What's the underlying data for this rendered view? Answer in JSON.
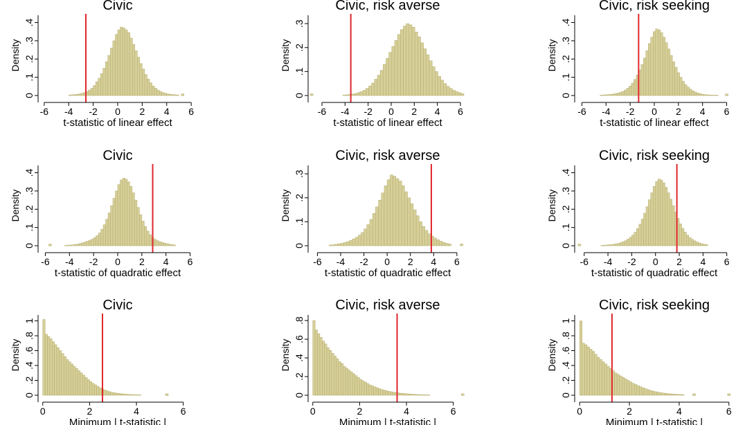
{
  "chart_data": [
    {
      "type": "bar",
      "title": "Civic",
      "xlabel": "t-statistic of linear effect",
      "ylabel": "Density",
      "xticks": [
        -6,
        -4,
        -2,
        0,
        2,
        4,
        6
      ],
      "yticks": [
        {
          "v": 0,
          "l": "0"
        },
        {
          "v": 0.1,
          "l": ".1"
        },
        {
          "v": 0.2,
          "l": ".2"
        },
        {
          "v": 0.3,
          "l": ".3"
        },
        {
          "v": 0.4,
          "l": ".4"
        }
      ],
      "xlim": [
        -6.5,
        6.5
      ],
      "ylim": [
        0,
        0.44
      ],
      "vline": -2.6,
      "bin_start": -4.0,
      "bin_width": 0.2,
      "values": [
        0.003,
        0.004,
        0.005,
        0.007,
        0.009,
        0.012,
        0.016,
        0.022,
        0.03,
        0.04,
        0.055,
        0.075,
        0.095,
        0.12,
        0.15,
        0.185,
        0.22,
        0.26,
        0.3,
        0.335,
        0.36,
        0.375,
        0.37,
        0.36,
        0.345,
        0.315,
        0.28,
        0.245,
        0.21,
        0.175,
        0.145,
        0.115,
        0.09,
        0.07,
        0.052,
        0.04,
        0.03,
        0.022,
        0.016,
        0.012,
        0.009,
        0.007,
        0.005,
        0.004,
        0.003
      ],
      "outliers": [
        {
          "x": 5.3,
          "v": 0.003
        }
      ]
    },
    {
      "type": "bar",
      "title": "Civic, risk averse",
      "xlabel": "t-statistic of linear effect",
      "ylabel": "Density",
      "xticks": [
        -6,
        -4,
        -2,
        0,
        2,
        4,
        6
      ],
      "yticks": [
        {
          "v": 0,
          "l": "0"
        },
        {
          "v": 0.1,
          "l": ".1"
        },
        {
          "v": 0.2,
          "l": ".2"
        },
        {
          "v": 0.3,
          "l": ".3"
        }
      ],
      "xlim": [
        -7.2,
        6.6
      ],
      "ylim": [
        0,
        0.335
      ],
      "vline": -3.5,
      "bin_start": -4.2,
      "bin_width": 0.25,
      "values": [
        0.002,
        0.003,
        0.004,
        0.006,
        0.008,
        0.012,
        0.016,
        0.022,
        0.03,
        0.04,
        0.052,
        0.068,
        0.085,
        0.105,
        0.13,
        0.155,
        0.18,
        0.205,
        0.23,
        0.255,
        0.275,
        0.29,
        0.3,
        0.295,
        0.285,
        0.265,
        0.245,
        0.22,
        0.195,
        0.17,
        0.145,
        0.12,
        0.1,
        0.08,
        0.064,
        0.05,
        0.038,
        0.03,
        0.022,
        0.016,
        0.012,
        0.008
      ],
      "outliers": [
        {
          "x": -6.9,
          "v": 0.003
        }
      ]
    },
    {
      "type": "bar",
      "title": "Civic, risk seeking",
      "xlabel": "t-statistic of linear effect",
      "ylabel": "Density",
      "xticks": [
        -6,
        -4,
        -2,
        0,
        2,
        4,
        6
      ],
      "yticks": [
        {
          "v": 0,
          "l": "0"
        },
        {
          "v": 0.1,
          "l": ".1"
        },
        {
          "v": 0.2,
          "l": ".2"
        },
        {
          "v": 0.3,
          "l": ".3"
        },
        {
          "v": 0.4,
          "l": ".4"
        }
      ],
      "xlim": [
        -6.6,
        6.6
      ],
      "ylim": [
        0,
        0.44
      ],
      "vline": -1.3,
      "bin_start": -4.5,
      "bin_width": 0.2,
      "values": [
        0.002,
        0.003,
        0.004,
        0.005,
        0.006,
        0.008,
        0.01,
        0.013,
        0.017,
        0.022,
        0.03,
        0.04,
        0.052,
        0.068,
        0.088,
        0.112,
        0.14,
        0.17,
        0.205,
        0.245,
        0.285,
        0.32,
        0.35,
        0.365,
        0.36,
        0.345,
        0.32,
        0.29,
        0.255,
        0.22,
        0.185,
        0.155,
        0.125,
        0.1,
        0.078,
        0.06,
        0.046,
        0.035,
        0.026,
        0.019,
        0.014,
        0.01,
        0.007,
        0.005,
        0.004,
        0.003,
        0.002,
        0.002,
        0.002
      ],
      "outliers": [
        {
          "x": 6.0,
          "v": 0.003
        }
      ]
    },
    {
      "type": "bar",
      "title": "Civic",
      "xlabel": "t-statistic of quadratic effect",
      "ylabel": "Density",
      "xticks": [
        -6,
        -4,
        -2,
        0,
        2,
        4,
        6
      ],
      "yticks": [
        {
          "v": 0,
          "l": "0"
        },
        {
          "v": 0.1,
          "l": ".1"
        },
        {
          "v": 0.2,
          "l": ".2"
        },
        {
          "v": 0.3,
          "l": ".3"
        },
        {
          "v": 0.4,
          "l": ".4"
        }
      ],
      "xlim": [
        -6.6,
        6.6
      ],
      "ylim": [
        0,
        0.44
      ],
      "vline": 2.9,
      "bin_start": -4.4,
      "bin_width": 0.2,
      "values": [
        0.002,
        0.003,
        0.004,
        0.005,
        0.007,
        0.009,
        0.012,
        0.016,
        0.02,
        0.025,
        0.03,
        0.036,
        0.044,
        0.055,
        0.07,
        0.09,
        0.115,
        0.145,
        0.18,
        0.22,
        0.26,
        0.3,
        0.335,
        0.36,
        0.37,
        0.365,
        0.35,
        0.325,
        0.29,
        0.25,
        0.21,
        0.17,
        0.135,
        0.105,
        0.08,
        0.06,
        0.045,
        0.035,
        0.028,
        0.022,
        0.018,
        0.014,
        0.011,
        0.008,
        0.006,
        0.004
      ],
      "outliers": [
        {
          "x": -5.6,
          "v": 0.003
        }
      ]
    },
    {
      "type": "bar",
      "title": "Civic, risk averse",
      "xlabel": "t-statistic of quadratic effect",
      "ylabel": "Density",
      "xticks": [
        -6,
        -4,
        -2,
        0,
        2,
        4,
        6
      ],
      "yticks": [
        {
          "v": 0,
          "l": "0"
        },
        {
          "v": 0.1,
          "l": ".1"
        },
        {
          "v": 0.2,
          "l": ".2"
        },
        {
          "v": 0.3,
          "l": ".3"
        }
      ],
      "xlim": [
        -6.8,
        6.9
      ],
      "ylim": [
        0,
        0.335
      ],
      "vline": 3.8,
      "bin_start": -5.0,
      "bin_width": 0.25,
      "values": [
        0.003,
        0.004,
        0.006,
        0.008,
        0.01,
        0.013,
        0.017,
        0.022,
        0.028,
        0.035,
        0.044,
        0.055,
        0.07,
        0.088,
        0.11,
        0.135,
        0.162,
        0.19,
        0.22,
        0.25,
        0.275,
        0.295,
        0.29,
        0.28,
        0.27,
        0.25,
        0.225,
        0.2,
        0.175,
        0.15,
        0.125,
        0.1,
        0.08,
        0.064,
        0.05,
        0.04,
        0.032,
        0.025,
        0.019,
        0.014,
        0.01,
        0.007
      ],
      "outliers": [
        {
          "x": 6.4,
          "v": 0.003
        }
      ]
    },
    {
      "type": "bar",
      "title": "Civic, risk seeking",
      "xlabel": "t-statistic of quadratic effect",
      "ylabel": "Density",
      "xticks": [
        -6,
        -4,
        -2,
        0,
        2,
        4,
        6
      ],
      "yticks": [
        {
          "v": 0,
          "l": "0"
        },
        {
          "v": 0.1,
          "l": ".1"
        },
        {
          "v": 0.2,
          "l": ".2"
        },
        {
          "v": 0.3,
          "l": ".3"
        },
        {
          "v": 0.4,
          "l": ".4"
        }
      ],
      "xlim": [
        -6.8,
        6.6
      ],
      "ylim": [
        0,
        0.44
      ],
      "vline": 1.8,
      "bin_start": -4.6,
      "bin_width": 0.2,
      "values": [
        0.002,
        0.003,
        0.004,
        0.005,
        0.006,
        0.008,
        0.01,
        0.013,
        0.017,
        0.022,
        0.028,
        0.036,
        0.046,
        0.058,
        0.074,
        0.094,
        0.118,
        0.146,
        0.178,
        0.214,
        0.252,
        0.29,
        0.325,
        0.352,
        0.365,
        0.36,
        0.345,
        0.32,
        0.29,
        0.255,
        0.22,
        0.185,
        0.15,
        0.12,
        0.095,
        0.075,
        0.058,
        0.045,
        0.035,
        0.027,
        0.02,
        0.015,
        0.011,
        0.008,
        0.006
      ],
      "outliers": [
        {
          "x": -6.4,
          "v": 0.003
        }
      ]
    },
    {
      "type": "bar",
      "title": "Civic",
      "xlabel": "Minimum | t-statistic |",
      "ylabel": "Density",
      "xticks": [
        0,
        2,
        4,
        6
      ],
      "yticks": [
        {
          "v": 0,
          "l": "0"
        },
        {
          "v": 0.2,
          "l": ".2"
        },
        {
          "v": 0.4,
          "l": ".4"
        },
        {
          "v": 0.6,
          "l": ".6"
        },
        {
          "v": 0.8,
          "l": ".8"
        },
        {
          "v": 1.0,
          "l": "1"
        }
      ],
      "xlim": [
        -0.2,
        6.6
      ],
      "ylim": [
        0,
        1.08
      ],
      "vline": 2.55,
      "bin_start": 0.0,
      "bin_width": 0.1,
      "values": [
        1.02,
        0.82,
        0.79,
        0.76,
        0.72,
        0.68,
        0.64,
        0.6,
        0.56,
        0.52,
        0.48,
        0.45,
        0.42,
        0.39,
        0.36,
        0.33,
        0.3,
        0.27,
        0.24,
        0.21,
        0.185,
        0.16,
        0.14,
        0.12,
        0.1,
        0.085,
        0.07,
        0.058,
        0.048,
        0.04,
        0.034,
        0.028,
        0.024,
        0.02,
        0.017,
        0.014,
        0.012,
        0.01,
        0.008,
        0.007,
        0.006,
        0.005
      ],
      "outliers": [
        {
          "x": 5.3,
          "v": 0.005
        }
      ]
    },
    {
      "type": "bar",
      "title": "Civic, risk averse",
      "xlabel": "Minimum | t-statistic |",
      "ylabel": "Density",
      "xticks": [
        0,
        2,
        4,
        6
      ],
      "yticks": [
        {
          "v": 0,
          "l": "0"
        },
        {
          "v": 0.2,
          "l": ".2"
        },
        {
          "v": 0.4,
          "l": ".4"
        },
        {
          "v": 0.6,
          "l": ".6"
        },
        {
          "v": 0.8,
          "l": ".8"
        }
      ],
      "xlim": [
        -0.2,
        6.6
      ],
      "ylim": [
        0,
        0.86
      ],
      "vline": 3.6,
      "bin_start": 0.0,
      "bin_width": 0.1,
      "values": [
        0.8,
        0.7,
        0.66,
        0.62,
        0.58,
        0.55,
        0.51,
        0.48,
        0.45,
        0.42,
        0.39,
        0.36,
        0.34,
        0.31,
        0.29,
        0.27,
        0.25,
        0.23,
        0.21,
        0.19,
        0.17,
        0.155,
        0.14,
        0.125,
        0.11,
        0.1,
        0.09,
        0.08,
        0.07,
        0.062,
        0.055,
        0.048,
        0.042,
        0.037,
        0.033,
        0.029,
        0.025,
        0.022,
        0.019,
        0.017,
        0.015,
        0.013,
        0.011,
        0.01,
        0.008,
        0.007,
        0.006,
        0.005,
        0.004,
        0.003
      ],
      "outliers": [
        {
          "x": 6.4,
          "v": 0.005
        }
      ]
    },
    {
      "type": "bar",
      "title": "Civic, risk seeking",
      "xlabel": "Minimum | t-statistic |",
      "ylabel": "Density",
      "xticks": [
        0,
        2,
        4,
        6
      ],
      "yticks": [
        {
          "v": 0,
          "l": "0"
        },
        {
          "v": 0.2,
          "l": ".2"
        },
        {
          "v": 0.4,
          "l": ".4"
        },
        {
          "v": 0.6,
          "l": ".6"
        },
        {
          "v": 0.8,
          "l": ".8"
        },
        {
          "v": 1.0,
          "l": "1"
        }
      ],
      "xlim": [
        -0.2,
        6.2
      ],
      "ylim": [
        0,
        1.08
      ],
      "vline": 1.3,
      "bin_start": 0.0,
      "bin_width": 0.1,
      "values": [
        1.0,
        0.7,
        0.68,
        0.65,
        0.62,
        0.59,
        0.55,
        0.51,
        0.48,
        0.45,
        0.42,
        0.39,
        0.36,
        0.33,
        0.3,
        0.28,
        0.26,
        0.24,
        0.22,
        0.2,
        0.18,
        0.16,
        0.145,
        0.13,
        0.115,
        0.1,
        0.088,
        0.076,
        0.065,
        0.056,
        0.048,
        0.041,
        0.035,
        0.03,
        0.026,
        0.022,
        0.019,
        0.016,
        0.014,
        0.012,
        0.01,
        0.008
      ],
      "outliers": [
        {
          "x": 4.6,
          "v": 0.005
        },
        {
          "x": 6.0,
          "v": 0.005
        }
      ]
    }
  ]
}
